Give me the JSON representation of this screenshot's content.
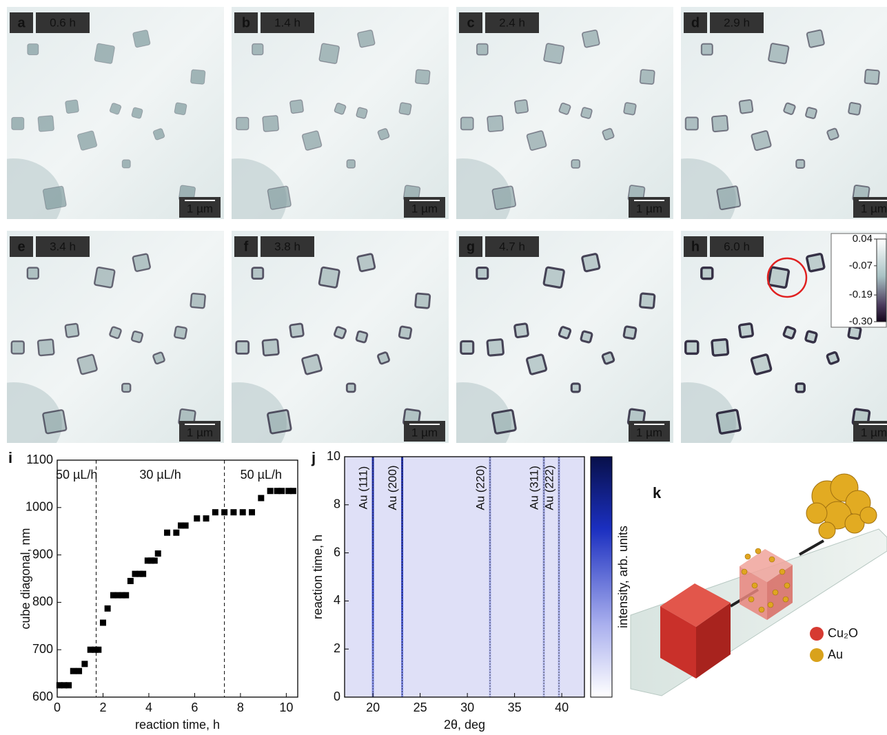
{
  "images": [
    {
      "letter": "a",
      "time": "0.6 h",
      "scale": "1 µm"
    },
    {
      "letter": "b",
      "time": "1.4 h",
      "scale": "1 µm"
    },
    {
      "letter": "c",
      "time": "2.4 h",
      "scale": "1 µm"
    },
    {
      "letter": "d",
      "time": "2.9 h",
      "scale": "1 µm"
    },
    {
      "letter": "e",
      "time": "3.4 h",
      "scale": "1 µm"
    },
    {
      "letter": "f",
      "time": "3.8 h",
      "scale": "1 µm"
    },
    {
      "letter": "g",
      "time": "4.7 h",
      "scale": "1 µm"
    },
    {
      "letter": "h",
      "time": "6.0 h",
      "scale": "1 µm"
    }
  ],
  "image_colorbar": {
    "lim": [
      -0.3,
      0.04
    ],
    "ticks": [
      0.04,
      -0.07,
      -0.19,
      {
        "value": -0.3,
        "label": "-0.30"
      }
    ]
  },
  "chart_data": [
    {
      "type": "scatter",
      "letter": "i",
      "xlabel": "reaction time, h",
      "ylabel": "cube diagonal, nm",
      "x": [
        0.1,
        0.3,
        0.5,
        0.7,
        0.95,
        1.2,
        1.45,
        1.65,
        1.8,
        2.0,
        2.2,
        2.45,
        2.65,
        2.85,
        3.0,
        3.2,
        3.4,
        3.6,
        3.75,
        3.95,
        4.1,
        4.25,
        4.4,
        4.8,
        5.2,
        5.4,
        5.6,
        6.1,
        6.5,
        6.9,
        7.3,
        7.7,
        8.1,
        8.5,
        8.9,
        9.3,
        9.6,
        9.8,
        10.1,
        10.3
      ],
      "values": [
        625,
        625,
        625,
        655,
        655,
        670,
        700,
        700,
        700,
        757,
        787,
        815,
        815,
        815,
        815,
        845,
        860,
        860,
        860,
        888,
        888,
        888,
        903,
        947,
        947,
        962,
        962,
        977,
        977,
        990,
        990,
        990,
        990,
        990,
        1020,
        1035,
        1035,
        1035,
        1035,
        1035
      ],
      "color": "#000000",
      "xlim": [
        0,
        10.5
      ],
      "ylim": [
        600,
        1100
      ],
      "xticks": [
        0,
        2,
        4,
        6,
        8,
        10
      ],
      "yticks": [
        600,
        700,
        800,
        900,
        1000,
        1100
      ],
      "vlines": [
        1.7,
        7.3
      ],
      "annotations": [
        "50 µL/h",
        "30 µL/h",
        "50 µL/h"
      ]
    },
    {
      "type": "heatmap",
      "letter": "j",
      "xlabel": "2θ, deg",
      "ylabel": "reaction time, h",
      "colorbar_label": "intensity, arb. units",
      "xlim": [
        17,
        42.4
      ],
      "ylim": [
        0,
        10
      ],
      "xticks": [
        20,
        25,
        30,
        35,
        40
      ],
      "yticks": [
        0,
        2,
        4,
        6,
        8,
        10
      ],
      "peaks": [
        {
          "label": "Au (111)",
          "x": 20.0
        },
        {
          "label": "Au (200)",
          "x": 23.1
        },
        {
          "label": "Au (220)",
          "x": 32.4
        },
        {
          "label": "Au (311)",
          "x": 38.1
        },
        {
          "label": "Au (222)",
          "x": 39.7
        }
      ]
    }
  ],
  "schematic": {
    "letter": "k",
    "legend": [
      {
        "label": "Cu₂O",
        "color": "#d63a32"
      },
      {
        "label": "Au",
        "color": "#d9a21b"
      }
    ]
  }
}
